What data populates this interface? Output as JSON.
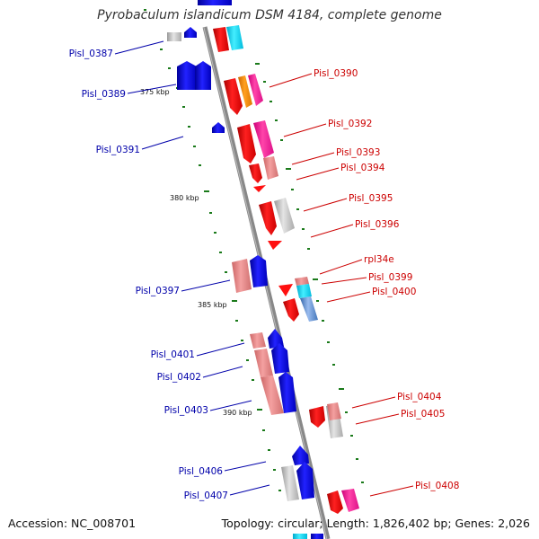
{
  "title": "Pyrobaculum islandicum DSM 4184, complete genome",
  "accession": "Accession: NC_008701",
  "summary": "Topology: circular; Length: 1,826,402 bp; Genes: 2,026",
  "colors": {
    "left_label": "#0000aa",
    "right_label": "#cc0000",
    "tick": "#1a7a1a",
    "backbone": "#888888"
  },
  "scale_labels": [
    "375 kbp",
    "380 kbp",
    "385 kbp",
    "390 kbp"
  ],
  "left_labels": [
    "Pisl_0387",
    "Pisl_0389",
    "Pisl_0391",
    "Pisl_0397",
    "Pisl_0401",
    "Pisl_0402",
    "Pisl_0403",
    "Pisl_0406",
    "Pisl_0407"
  ],
  "right_labels": [
    "Pisl_0390",
    "Pisl_0392",
    "Pisl_0393",
    "Pisl_0394",
    "Pisl_0395",
    "Pisl_0396",
    "rpl34e",
    "Pisl_0399",
    "Pisl_0400",
    "Pisl_0404",
    "Pisl_0405",
    "Pisl_0408"
  ]
}
